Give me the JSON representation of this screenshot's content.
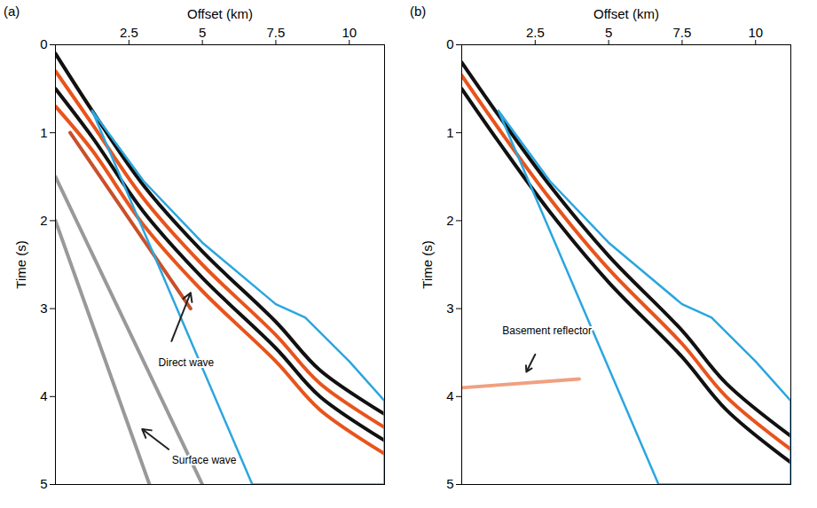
{
  "chart_data": [
    {
      "type": "line",
      "panel_label": "(a)",
      "xlabel": "Offset (km)",
      "ylabel": "Time (s)",
      "xlim": [
        0,
        11.2
      ],
      "ylim": [
        0,
        5
      ],
      "xticks": [
        2.5,
        5,
        7.5,
        10
      ],
      "yticks": [
        0,
        1,
        2,
        3,
        4,
        5
      ],
      "series": [
        {
          "color": "#111111",
          "x": [
            0,
            1.25,
            3,
            5,
            7.5,
            9,
            11.2
          ],
          "values": [
            0.1,
            0.75,
            1.6,
            2.35,
            3.15,
            3.7,
            4.2
          ]
        },
        {
          "color": "#e8541c",
          "x": [
            0,
            1.25,
            3,
            5,
            7.5,
            9,
            11.2
          ],
          "values": [
            0.3,
            0.9,
            1.75,
            2.5,
            3.3,
            3.85,
            4.35
          ]
        },
        {
          "color": "#111111",
          "x": [
            0,
            1.25,
            3,
            5,
            7.5,
            9,
            11.2
          ],
          "values": [
            0.5,
            1.05,
            1.9,
            2.65,
            3.45,
            4.0,
            4.5
          ]
        },
        {
          "color": "#e8541c",
          "x": [
            0,
            1.25,
            3,
            5,
            7.5,
            9,
            11.2
          ],
          "values": [
            0.7,
            1.2,
            2.05,
            2.8,
            3.6,
            4.15,
            4.65
          ]
        },
        {
          "color": "#c9502a",
          "x": [
            0.5,
            4.6
          ],
          "values": [
            1.0,
            3.0
          ]
        },
        {
          "color": "#999999",
          "x": [
            0,
            5
          ],
          "values": [
            1.5,
            5
          ]
        },
        {
          "color": "#999999",
          "x": [
            0,
            3.2
          ],
          "values": [
            2.0,
            5
          ]
        },
        {
          "color": "#2ba6de",
          "x": [
            1.25,
            3,
            5,
            7.5,
            8.5,
            10,
            11.2,
            11.2,
            6.7,
            1.25
          ],
          "values": [
            0.75,
            1.55,
            2.25,
            2.95,
            3.1,
            3.6,
            4.05,
            5,
            5,
            0.75
          ]
        }
      ],
      "annotations": [
        {
          "text": "Direct wave",
          "x": 4.45,
          "y": 3.62,
          "arrow": [
            [
              3.95,
              3.37
            ],
            [
              4.6,
              2.82
            ]
          ]
        },
        {
          "text": "Surface wave",
          "x": 5.06,
          "y": 4.72,
          "arrow": [
            [
              3.85,
              4.6
            ],
            [
              2.95,
              4.37
            ]
          ]
        }
      ]
    },
    {
      "type": "line",
      "panel_label": "(b)",
      "xlabel": "Offset (km)",
      "ylabel": "Time (s)",
      "xlim": [
        0,
        11.2
      ],
      "ylim": [
        0,
        5
      ],
      "xticks": [
        2.5,
        5,
        7.5,
        10
      ],
      "yticks": [
        0,
        1,
        2,
        3,
        4,
        5
      ],
      "series": [
        {
          "color": "#111111",
          "x": [
            0,
            1.25,
            3,
            5,
            7.5,
            9,
            11.2
          ],
          "values": [
            0.2,
            0.8,
            1.6,
            2.4,
            3.25,
            3.85,
            4.45
          ]
        },
        {
          "color": "#e8541c",
          "x": [
            0,
            1.25,
            3,
            5,
            7.5,
            9,
            11.2
          ],
          "values": [
            0.35,
            0.95,
            1.75,
            2.55,
            3.4,
            4.0,
            4.6
          ]
        },
        {
          "color": "#111111",
          "x": [
            0,
            1.25,
            3,
            5,
            7.5,
            9,
            11.2
          ],
          "values": [
            0.5,
            1.1,
            1.9,
            2.7,
            3.55,
            4.15,
            4.75
          ]
        },
        {
          "color": "#f0a080",
          "x": [
            0,
            4
          ],
          "values": [
            3.9,
            3.8
          ]
        },
        {
          "color": "#2ba6de",
          "x": [
            1.25,
            3,
            5,
            7.5,
            8.5,
            10,
            11.2,
            11.2,
            6.7,
            1.25
          ],
          "values": [
            0.75,
            1.55,
            2.25,
            2.95,
            3.1,
            3.6,
            4.05,
            5,
            5,
            0.75
          ]
        }
      ],
      "annotations": [
        {
          "text": "Basement reflector",
          "x": 2.9,
          "y": 3.25,
          "arrow": [
            [
              2.5,
              3.52
            ],
            [
              2.2,
              3.72
            ]
          ]
        }
      ]
    }
  ]
}
